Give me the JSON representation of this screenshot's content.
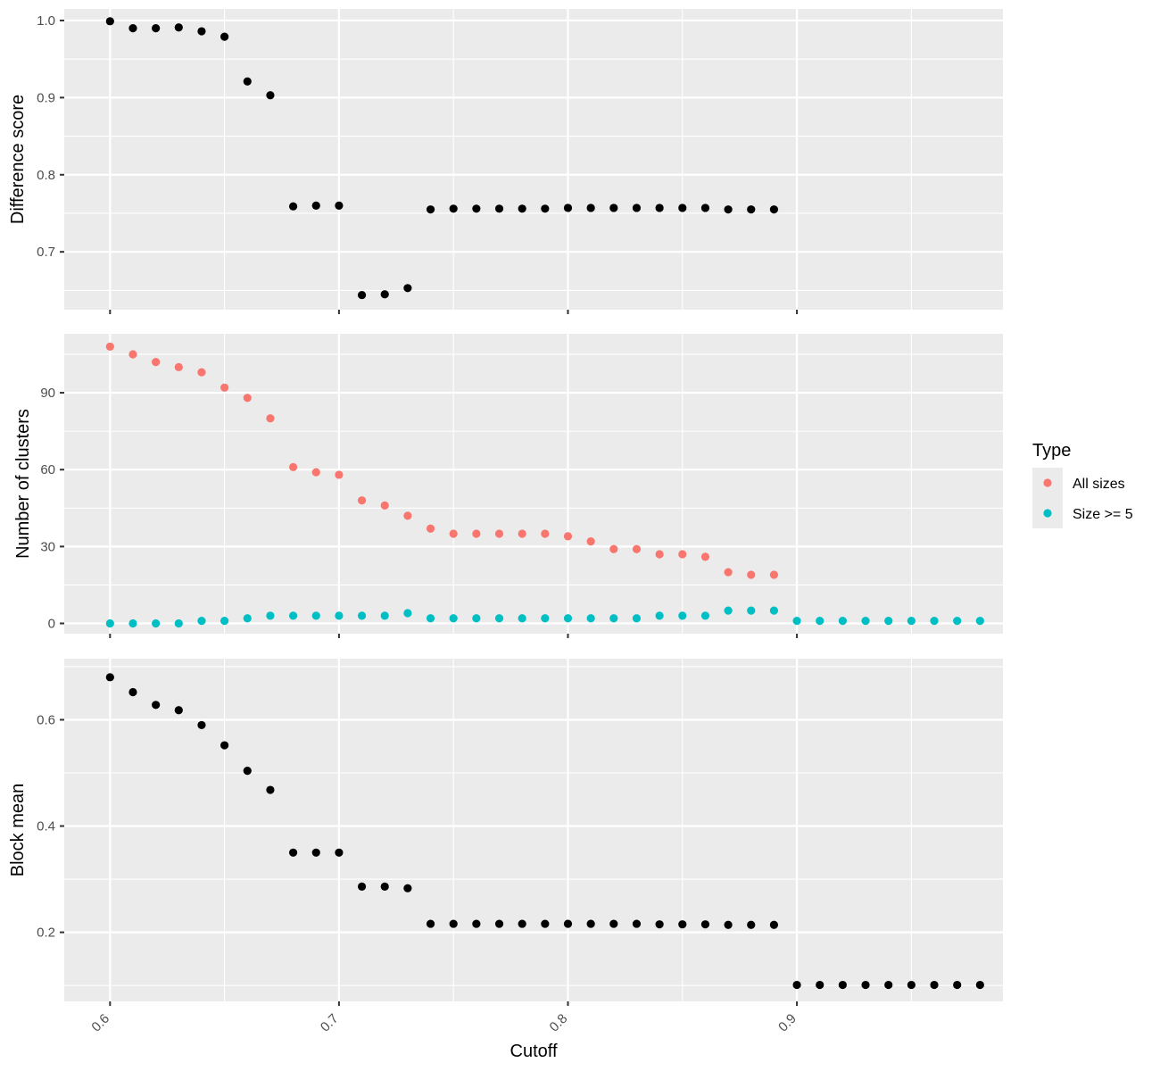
{
  "chart_data": {
    "type": "scatter",
    "xlabel": "Cutoff",
    "x_ticks": [
      0.6,
      0.7,
      0.8,
      0.9
    ],
    "x_tick_labels": [
      "0.6",
      "0.7",
      "0.8",
      "0.9"
    ],
    "xlim": [
      0.58,
      0.99
    ],
    "grid": true,
    "legend": {
      "title": "Type",
      "placement": "right",
      "entries": [
        {
          "label": "All sizes",
          "color": "#F8766D"
        },
        {
          "label": "Size >= 5",
          "color": "#00BFC4"
        }
      ]
    },
    "panels": [
      {
        "name": "difference-score",
        "ylabel": "Difference score",
        "ylim": [
          0.625,
          1.015
        ],
        "y_ticks": [
          0.7,
          0.8,
          0.9,
          1.0
        ],
        "y_tick_labels": [
          "0.7",
          "0.8",
          "0.9",
          "1.0"
        ],
        "series": [
          {
            "color": "#000000",
            "points": [
              [
                0.6,
                0.999
              ],
              [
                0.61,
                0.99
              ],
              [
                0.62,
                0.99
              ],
              [
                0.63,
                0.991
              ],
              [
                0.64,
                0.986
              ],
              [
                0.65,
                0.979
              ],
              [
                0.66,
                0.921
              ],
              [
                0.67,
                0.903
              ],
              [
                0.68,
                0.759
              ],
              [
                0.69,
                0.76
              ],
              [
                0.7,
                0.76
              ],
              [
                0.71,
                0.644
              ],
              [
                0.72,
                0.645
              ],
              [
                0.73,
                0.653
              ],
              [
                0.74,
                0.755
              ],
              [
                0.75,
                0.756
              ],
              [
                0.76,
                0.756
              ],
              [
                0.77,
                0.756
              ],
              [
                0.78,
                0.756
              ],
              [
                0.79,
                0.756
              ],
              [
                0.8,
                0.757
              ],
              [
                0.81,
                0.757
              ],
              [
                0.82,
                0.757
              ],
              [
                0.83,
                0.757
              ],
              [
                0.84,
                0.757
              ],
              [
                0.85,
                0.757
              ],
              [
                0.86,
                0.757
              ],
              [
                0.87,
                0.755
              ],
              [
                0.88,
                0.755
              ],
              [
                0.89,
                0.755
              ]
            ]
          }
        ]
      },
      {
        "name": "number-of-clusters",
        "ylabel": "Number of clusters",
        "ylim": [
          -4,
          113
        ],
        "y_ticks": [
          0,
          30,
          60,
          90
        ],
        "y_tick_labels": [
          "0",
          "30",
          "60",
          "90"
        ],
        "series": [
          {
            "name": "All sizes",
            "color": "#F8766D",
            "points": [
              [
                0.6,
                108
              ],
              [
                0.61,
                105
              ],
              [
                0.62,
                102
              ],
              [
                0.63,
                100
              ],
              [
                0.64,
                98
              ],
              [
                0.65,
                92
              ],
              [
                0.66,
                88
              ],
              [
                0.67,
                80
              ],
              [
                0.68,
                61
              ],
              [
                0.69,
                59
              ],
              [
                0.7,
                58
              ],
              [
                0.71,
                48
              ],
              [
                0.72,
                46
              ],
              [
                0.73,
                42
              ],
              [
                0.74,
                37
              ],
              [
                0.75,
                35
              ],
              [
                0.76,
                35
              ],
              [
                0.77,
                35
              ],
              [
                0.78,
                35
              ],
              [
                0.79,
                35
              ],
              [
                0.8,
                34
              ],
              [
                0.81,
                32
              ],
              [
                0.82,
                29
              ],
              [
                0.83,
                29
              ],
              [
                0.84,
                27
              ],
              [
                0.85,
                27
              ],
              [
                0.86,
                26
              ],
              [
                0.87,
                20
              ],
              [
                0.88,
                19
              ],
              [
                0.89,
                19
              ]
            ]
          },
          {
            "name": "Size >= 5",
            "color": "#00BFC4",
            "points": [
              [
                0.6,
                0
              ],
              [
                0.61,
                0
              ],
              [
                0.62,
                0
              ],
              [
                0.63,
                0
              ],
              [
                0.64,
                1
              ],
              [
                0.65,
                1
              ],
              [
                0.66,
                2
              ],
              [
                0.67,
                3
              ],
              [
                0.68,
                3
              ],
              [
                0.69,
                3
              ],
              [
                0.7,
                3
              ],
              [
                0.71,
                3
              ],
              [
                0.72,
                3
              ],
              [
                0.73,
                4
              ],
              [
                0.74,
                2
              ],
              [
                0.75,
                2
              ],
              [
                0.76,
                2
              ],
              [
                0.77,
                2
              ],
              [
                0.78,
                2
              ],
              [
                0.79,
                2
              ],
              [
                0.8,
                2
              ],
              [
                0.81,
                2
              ],
              [
                0.82,
                2
              ],
              [
                0.83,
                2
              ],
              [
                0.84,
                3
              ],
              [
                0.85,
                3
              ],
              [
                0.86,
                3
              ],
              [
                0.87,
                5
              ],
              [
                0.88,
                5
              ],
              [
                0.89,
                5
              ],
              [
                0.9,
                1
              ],
              [
                0.91,
                1
              ],
              [
                0.92,
                1
              ],
              [
                0.93,
                1
              ],
              [
                0.94,
                1
              ],
              [
                0.95,
                1
              ],
              [
                0.96,
                1
              ],
              [
                0.97,
                1
              ],
              [
                0.98,
                1
              ]
            ]
          }
        ]
      },
      {
        "name": "block-mean",
        "ylabel": "Block mean",
        "ylim": [
          0.07,
          0.715
        ],
        "y_ticks": [
          0.2,
          0.4,
          0.6
        ],
        "y_tick_labels": [
          "0.2",
          "0.4",
          "0.6"
        ],
        "series": [
          {
            "color": "#000000",
            "points": [
              [
                0.6,
                0.68
              ],
              [
                0.61,
                0.652
              ],
              [
                0.62,
                0.628
              ],
              [
                0.63,
                0.618
              ],
              [
                0.64,
                0.59
              ],
              [
                0.65,
                0.552
              ],
              [
                0.66,
                0.504
              ],
              [
                0.67,
                0.468
              ],
              [
                0.68,
                0.35
              ],
              [
                0.69,
                0.35
              ],
              [
                0.7,
                0.35
              ],
              [
                0.71,
                0.286
              ],
              [
                0.72,
                0.286
              ],
              [
                0.73,
                0.283
              ],
              [
                0.74,
                0.216
              ],
              [
                0.75,
                0.216
              ],
              [
                0.76,
                0.216
              ],
              [
                0.77,
                0.216
              ],
              [
                0.78,
                0.216
              ],
              [
                0.79,
                0.216
              ],
              [
                0.8,
                0.216
              ],
              [
                0.81,
                0.216
              ],
              [
                0.82,
                0.216
              ],
              [
                0.83,
                0.216
              ],
              [
                0.84,
                0.215
              ],
              [
                0.85,
                0.215
              ],
              [
                0.86,
                0.215
              ],
              [
                0.87,
                0.214
              ],
              [
                0.88,
                0.214
              ],
              [
                0.89,
                0.214
              ],
              [
                0.9,
                0.101
              ],
              [
                0.91,
                0.101
              ],
              [
                0.92,
                0.101
              ],
              [
                0.93,
                0.101
              ],
              [
                0.94,
                0.101
              ],
              [
                0.95,
                0.101
              ],
              [
                0.96,
                0.101
              ],
              [
                0.97,
                0.101
              ],
              [
                0.98,
                0.101
              ]
            ]
          }
        ]
      }
    ]
  }
}
